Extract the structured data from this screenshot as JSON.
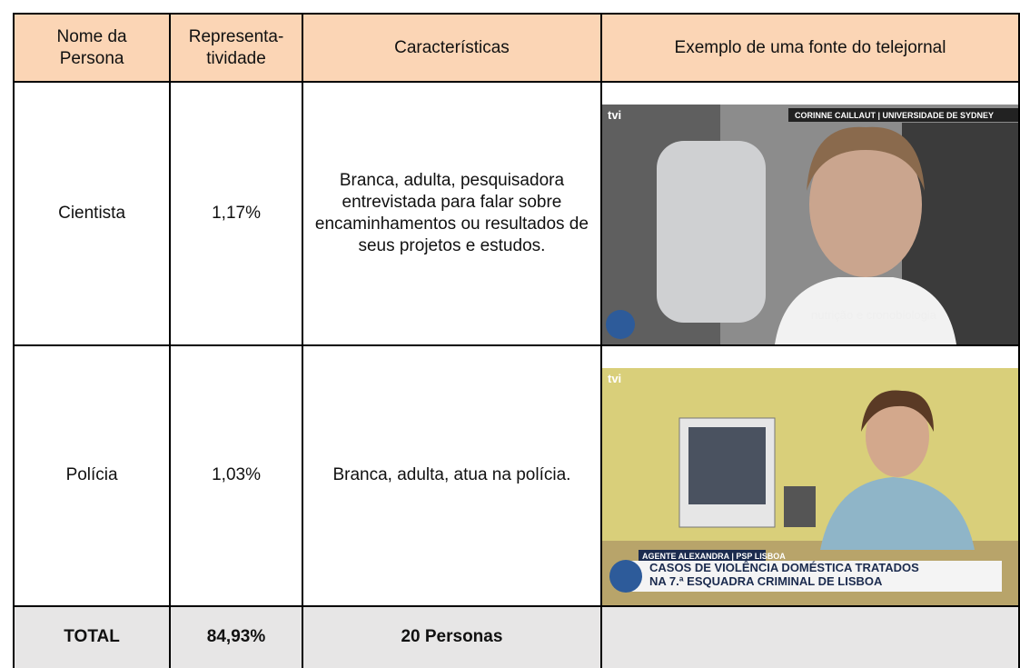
{
  "table": {
    "header": [
      "Nome da\nPersona",
      "Representa-\ntividade",
      "Características",
      "Exemplo de uma fonte do telejornal"
    ],
    "rows": [
      {
        "name": "Cientista",
        "share": "1,17%",
        "traits": "Branca, adulta, pesquisadora entrevistada para falar sobre encaminhamentos ou resultados de seus projetos e estudos.",
        "image": {
          "logo": "tvi",
          "caption": "CORINNE CAILLAUT | UNIVERSIDADE DE SYDNEY",
          "subtitle": "nutrição e cronobiologia"
        }
      },
      {
        "name": "Polícia",
        "share": "1,03%",
        "traits": "Branca, adulta, atua na polícia.",
        "image": {
          "logo": "tvi",
          "caption": "AGENTE ALEXANDRA | PSP LISBOA",
          "headline": "CASOS DE VIOLÊNCIA DOMÉSTICA TRATADOS\nNA 7.ª ESQUADRA CRIMINAL DE LISBOA"
        }
      }
    ],
    "total": {
      "name": "TOTAL",
      "share": "84,93%",
      "traits": "20 Personas"
    }
  }
}
